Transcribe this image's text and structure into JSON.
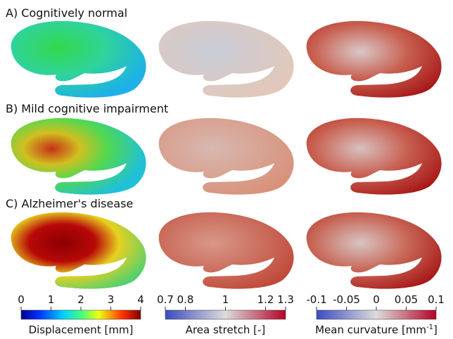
{
  "rows": [
    {
      "label": "A) Cognitively normal"
    },
    {
      "label": "B) Mild cognitive impairment"
    },
    {
      "label": "C) Alzheimer's disease"
    }
  ],
  "colorbars": [
    {
      "label_parts": [
        "Displacement [mm]"
      ],
      "lim": [
        0,
        4
      ],
      "ticks": [
        0,
        1,
        2,
        3,
        4
      ]
    },
    {
      "label_parts": [
        "Area stretch [-]"
      ],
      "lim": [
        0.7,
        1.3
      ],
      "ticks": [
        0.7,
        0.8,
        1,
        1.2,
        1.3
      ]
    },
    {
      "label_parts": [
        "Mean curvature [mm",
        "-1",
        "]"
      ],
      "lim": [
        -0.1,
        0.1
      ],
      "ticks": [
        -0.1,
        -0.05,
        0,
        0.05,
        0.1
      ]
    }
  ]
}
